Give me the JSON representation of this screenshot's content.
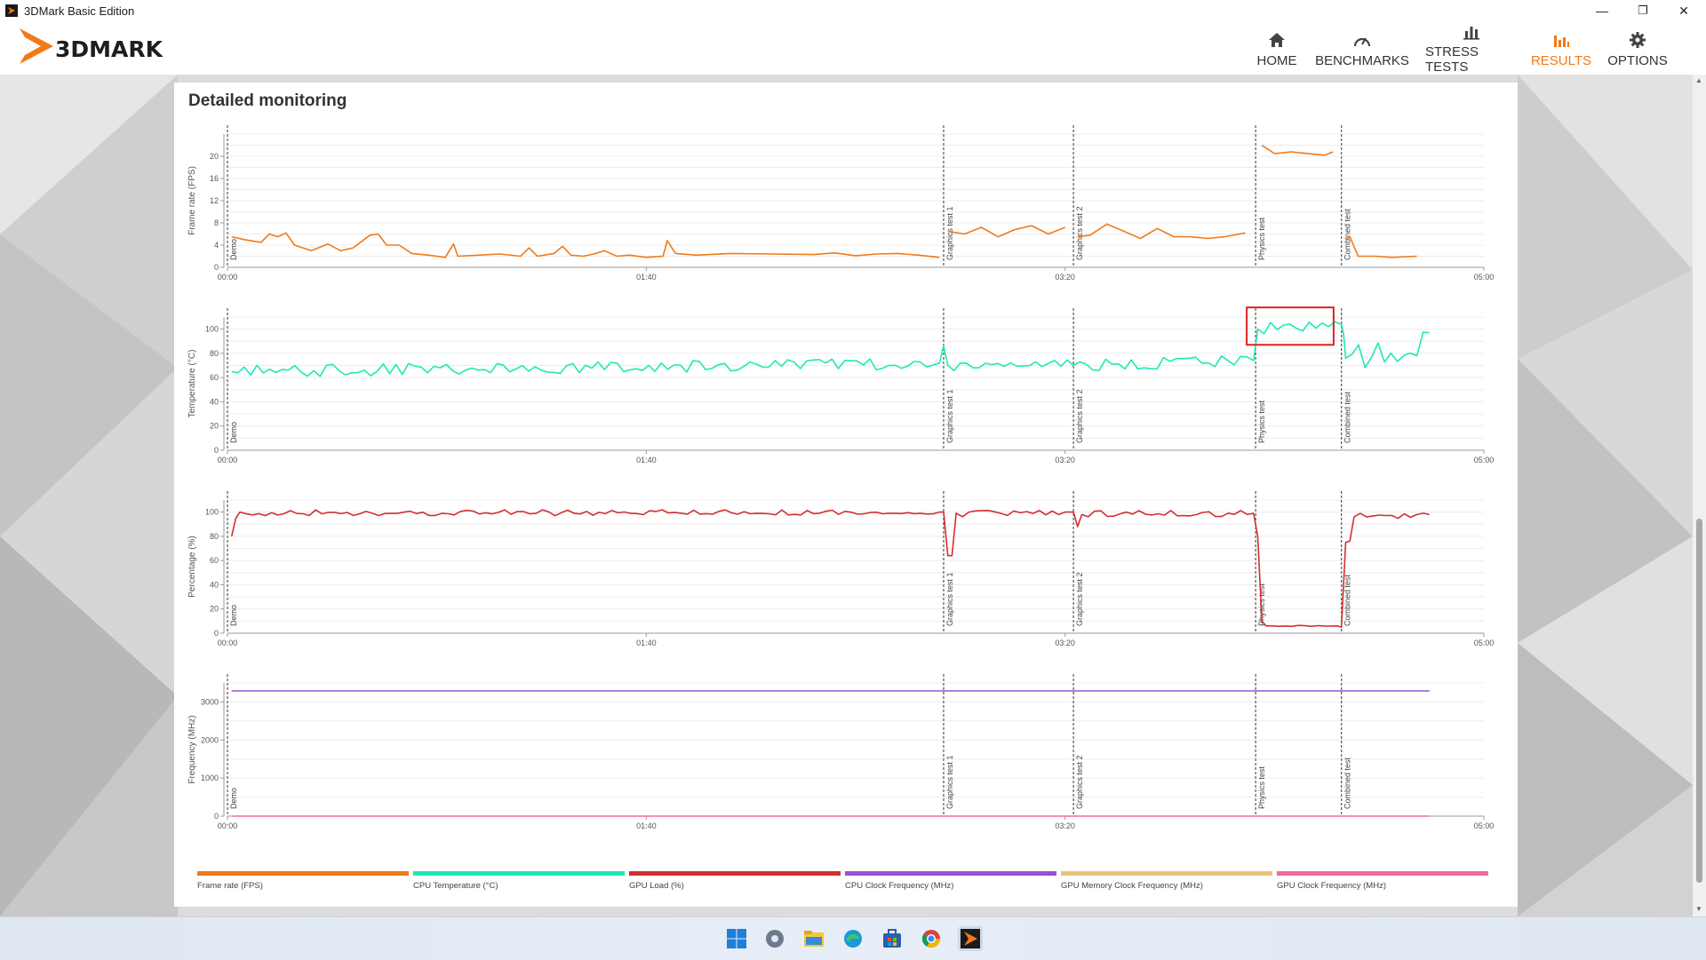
{
  "window": {
    "title": "3DMark Basic Edition",
    "minimize": "—",
    "restore": "❐",
    "close": "✕"
  },
  "logo": {
    "text": "3DMARK"
  },
  "nav": [
    {
      "label": "HOME",
      "icon": "home-icon"
    },
    {
      "label": "BENCHMARKS",
      "icon": "gauge-icon"
    },
    {
      "label": "STRESS TESTS",
      "icon": "bar-chart-icon"
    },
    {
      "label": "RESULTS",
      "icon": "results-chart-icon",
      "active": true
    },
    {
      "label": "OPTIONS",
      "icon": "gear-icon"
    }
  ],
  "colors": {
    "accent": "#f07a1a",
    "fps": "#f07a1a",
    "cpu_temp": "#1de9b6",
    "gpu_load": "#d32f2f",
    "cpu_clock": "#9c4fd6",
    "gpu_mem_clock": "#e8c37e",
    "gpu_clock": "#f06aa0"
  },
  "panel": {
    "title": "Detailed monitoring"
  },
  "test_markers": [
    {
      "label": "Demo",
      "x": 0
    },
    {
      "label": "Graphics test 1",
      "x": 171
    },
    {
      "label": "Graphics test 2",
      "x": 202
    },
    {
      "label": "Physics test",
      "x": 245.5
    },
    {
      "label": "Combined test",
      "x": 266
    }
  ],
  "x_ticks": [
    "00:00",
    "01:40",
    "03:20",
    "05:00"
  ],
  "chart_data": [
    {
      "type": "line",
      "ylabel": "Frame rate (FPS)",
      "yticks": [
        "0",
        "4",
        "8",
        "12",
        "16",
        "20"
      ],
      "ylim": [
        0,
        24
      ],
      "xlim": [
        0,
        300
      ],
      "series": [
        {
          "name": "Frame rate (FPS)",
          "color": "#f07a1a",
          "segments": [
            [
              [
                1,
                5.5
              ],
              [
                4,
                5
              ],
              [
                8,
                4.5
              ],
              [
                10,
                6
              ],
              [
                12,
                5.5
              ],
              [
                14,
                6.2
              ],
              [
                16,
                4
              ],
              [
                20,
                3
              ],
              [
                24,
                4.2
              ],
              [
                27,
                3
              ],
              [
                30,
                3.5
              ],
              [
                34,
                5.8
              ],
              [
                36,
                6
              ],
              [
                38,
                4
              ],
              [
                41,
                4
              ],
              [
                44,
                2.5
              ],
              [
                48,
                2.2
              ],
              [
                52,
                1.8
              ],
              [
                54,
                4.2
              ],
              [
                55,
                2
              ],
              [
                60,
                2.2
              ],
              [
                65,
                2.4
              ],
              [
                70,
                2
              ],
              [
                72,
                3.5
              ],
              [
                74,
                2
              ],
              [
                78,
                2.5
              ],
              [
                80,
                3.8
              ],
              [
                82,
                2.2
              ],
              [
                85,
                2
              ],
              [
                88,
                2.5
              ],
              [
                90,
                3
              ],
              [
                93,
                2
              ],
              [
                96,
                2.2
              ],
              [
                100,
                1.8
              ],
              [
                104,
                2
              ],
              [
                105,
                4.8
              ],
              [
                107,
                2.5
              ],
              [
                112,
                2.2
              ],
              [
                120,
                2.5
              ],
              [
                130,
                2.4
              ],
              [
                140,
                2.3
              ],
              [
                145,
                2.6
              ],
              [
                150,
                2.1
              ],
              [
                155,
                2.4
              ],
              [
                160,
                2.5
              ],
              [
                165,
                2.2
              ],
              [
                170,
                1.8
              ]
            ],
            [
              [
                172,
                6.5
              ],
              [
                176,
                6
              ],
              [
                180,
                7.2
              ],
              [
                184,
                5.5
              ],
              [
                188,
                6.8
              ],
              [
                192,
                7.5
              ],
              [
                196,
                6
              ],
              [
                200,
                7.2
              ]
            ],
            [
              [
                203,
                5.5
              ],
              [
                206,
                5.8
              ],
              [
                210,
                7.8
              ],
              [
                214,
                6.5
              ],
              [
                218,
                5.2
              ],
              [
                222,
                7
              ],
              [
                226,
                5.5
              ],
              [
                230,
                5.5
              ],
              [
                234,
                5.2
              ],
              [
                238,
                5.5
              ],
              [
                243,
                6.2
              ]
            ],
            [
              [
                247,
                22
              ],
              [
                250,
                20.5
              ],
              [
                254,
                20.8
              ],
              [
                258,
                20.5
              ],
              [
                262,
                20.2
              ],
              [
                264,
                20.8
              ]
            ],
            [
              [
                267,
                5
              ],
              [
                268,
                5.5
              ],
              [
                270,
                2
              ],
              [
                274,
                2
              ],
              [
                278,
                1.8
              ],
              [
                284,
                2
              ]
            ]
          ]
        }
      ]
    },
    {
      "type": "line",
      "ylabel": "Temperature (°C)",
      "yticks": [
        "0",
        "20",
        "40",
        "60",
        "80",
        "100"
      ],
      "ylim": [
        0,
        110
      ],
      "xlim": [
        0,
        300
      ],
      "series": [
        {
          "name": "CPU Temperature (°C)",
          "color": "#1de9b6",
          "segments": [
            [
              [
                1,
                65
              ],
              [
                170,
                72
              ],
              [
                171,
                86
              ],
              [
                172,
                70
              ],
              [
                202,
                70
              ],
              [
                245,
                74
              ],
              [
                246,
                100
              ],
              [
                266,
                104
              ],
              [
                266.5,
                96
              ],
              [
                267,
                76
              ],
              [
                284,
                78
              ],
              [
                287,
                97
              ]
            ]
          ]
        }
      ]
    },
    {
      "type": "line",
      "ylabel": "Percentage (%)",
      "yticks": [
        "0",
        "20",
        "40",
        "60",
        "80",
        "100"
      ],
      "ylim": [
        0,
        110
      ],
      "xlim": [
        0,
        300
      ],
      "series": [
        {
          "name": "GPU Load (%)",
          "color": "#d32f2f",
          "segments": [
            [
              [
                1,
                80
              ],
              [
                2,
                95
              ],
              [
                3,
                100
              ],
              [
                170,
                100
              ],
              [
                171,
                100
              ],
              [
                172,
                64
              ],
              [
                173,
                64
              ],
              [
                174,
                99
              ],
              [
                200,
                100
              ],
              [
                202,
                100
              ],
              [
                203,
                88
              ],
              [
                204,
                98
              ],
              [
                245,
                99
              ],
              [
                246,
                80
              ],
              [
                247,
                10
              ],
              [
                248,
                6
              ],
              [
                265,
                6
              ],
              [
                266,
                5
              ],
              [
                267,
                75
              ],
              [
                268,
                76
              ],
              [
                269,
                96
              ],
              [
                284,
                98
              ],
              [
                287,
                98
              ]
            ]
          ]
        }
      ]
    },
    {
      "type": "line",
      "ylabel": "Frequency (MHz)",
      "yticks": [
        "0",
        "1000",
        "2000",
        "3000"
      ],
      "ylim": [
        0,
        3500
      ],
      "xlim": [
        0,
        300
      ],
      "series": [
        {
          "name": "CPU Clock Frequency (MHz)",
          "color": "#9c4fd6",
          "segments": [
            [
              [
                1,
                3290
              ],
              [
                287,
                3290
              ]
            ]
          ]
        },
        {
          "name": "GPU Clock Frequency (MHz)",
          "color": "#f06aa0",
          "segments": [
            [
              [
                1,
                0
              ],
              [
                287,
                0
              ]
            ]
          ]
        }
      ]
    }
  ],
  "highlight_box": {
    "chart": 1,
    "x": [
      245.5,
      262
    ],
    "y": [
      90,
      115
    ],
    "color": "#e02020"
  },
  "legend": [
    {
      "label": "Frame rate (FPS)",
      "color": "#f07a1a"
    },
    {
      "label": "CPU Temperature (°C)",
      "color": "#1de9b6"
    },
    {
      "label": "GPU Load (%)",
      "color": "#d32f2f"
    },
    {
      "label": "CPU Clock Frequency (MHz)",
      "color": "#9c4fd6"
    },
    {
      "label": "GPU Memory Clock Frequency (MHz)",
      "color": "#e8c37e"
    },
    {
      "label": "GPU Clock Frequency (MHz)",
      "color": "#f06aa0"
    }
  ],
  "taskbar": [
    "windows-start-icon",
    "settings-icon",
    "file-explorer-icon",
    "edge-browser-icon",
    "microsoft-store-icon",
    "chrome-icon",
    "3dmark-app-icon"
  ]
}
